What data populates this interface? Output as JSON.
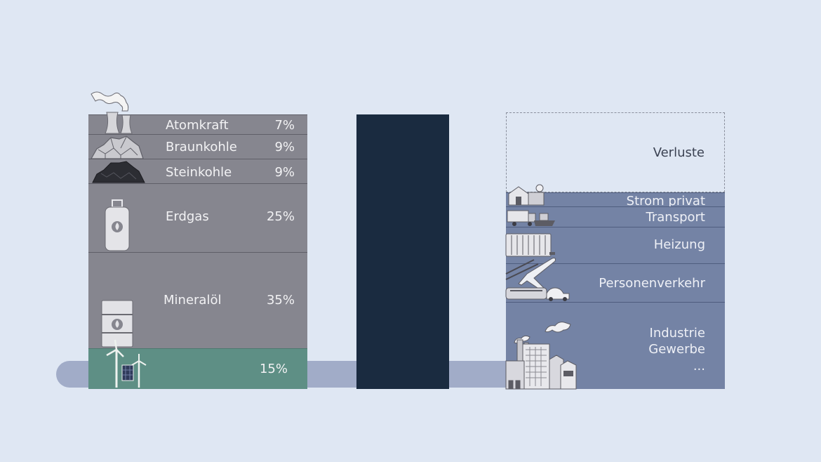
{
  "sources": [
    {
      "label": "Atomkraft",
      "percent": "7%"
    },
    {
      "label": "Braunkohle",
      "percent": "9%"
    },
    {
      "label": "Steinkohle",
      "percent": "9%"
    },
    {
      "label": "Erdgas",
      "percent": "25%"
    },
    {
      "label": "Mineralöl",
      "percent": "35%"
    },
    {
      "label": "",
      "percent": "15%"
    }
  ],
  "uses": {
    "losses": "Verluste",
    "strom": "Strom privat",
    "transport": "Transport",
    "heizung": "Heizung",
    "personen": "Personenverkehr",
    "industrie": [
      "Industrie",
      "Gewerbe",
      "..."
    ]
  },
  "colors": {
    "fossil": "#86868f",
    "renewable": "#5e8f85",
    "middle": "#1a2b40",
    "uses": "#7483a5",
    "pipe": "#a1acc8",
    "background": "#dfe7f3"
  },
  "icons": [
    "cooling-tower-icon",
    "lignite-pile-icon",
    "hard-coal-pile-icon",
    "gas-bottle-icon",
    "oil-barrel-icon",
    "wind-solar-icon",
    "house-icon",
    "truck-ship-icon",
    "radiator-icon",
    "plane-train-car-icon",
    "factory-icon"
  ]
}
